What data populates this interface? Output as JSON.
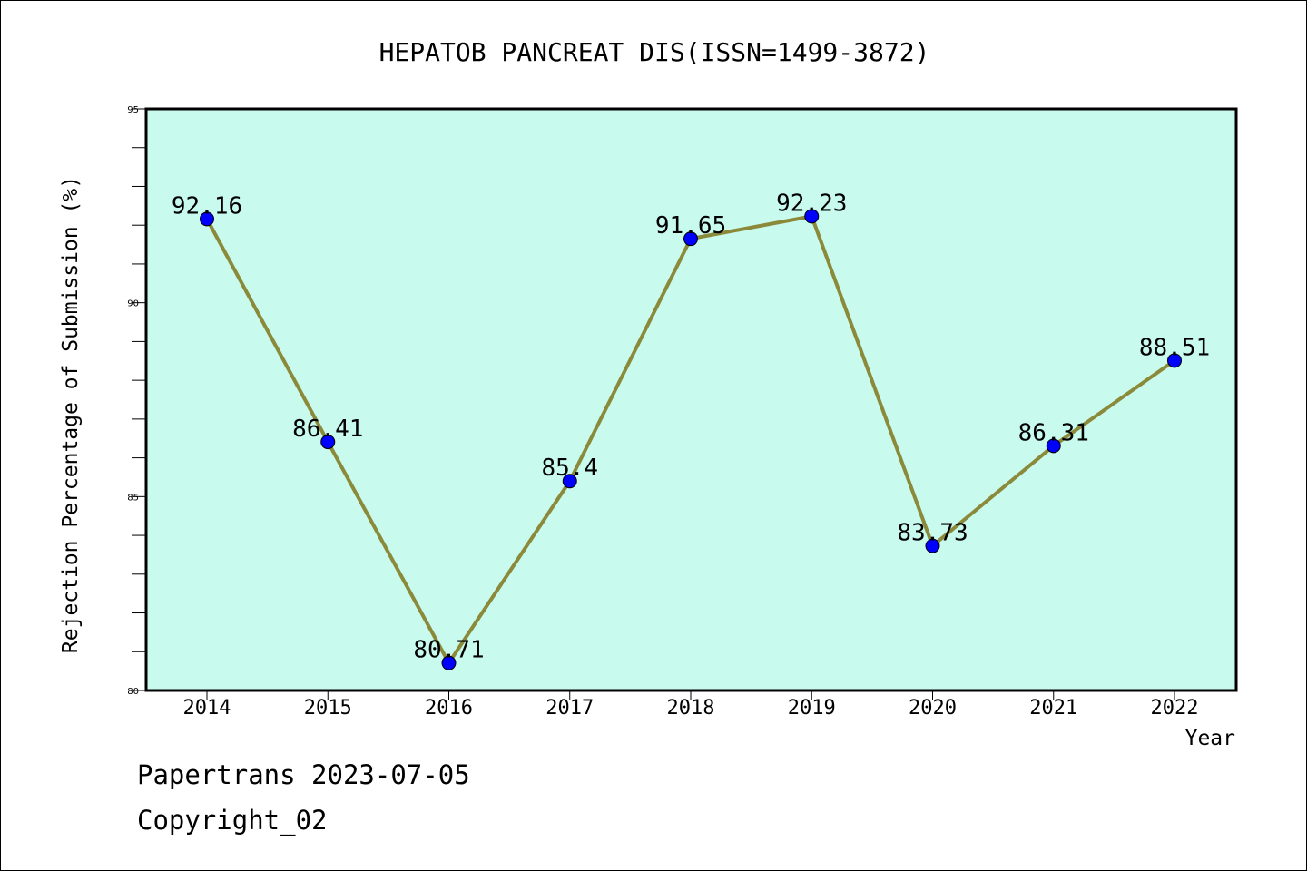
{
  "chart_data": {
    "type": "line",
    "title": "HEPATOB PANCREAT DIS(ISSN=1499-3872)",
    "xlabel": "Year",
    "ylabel": "Rejection Percentage of Submission (%)",
    "categories": [
      "2014",
      "2015",
      "2016",
      "2017",
      "2018",
      "2019",
      "2020",
      "2021",
      "2022"
    ],
    "values": [
      92.16,
      86.41,
      80.71,
      85.4,
      91.65,
      92.23,
      83.73,
      86.31,
      88.51
    ],
    "data_labels": [
      "92.16",
      "86.41",
      "80.71",
      "85.4",
      "91.65",
      "92.23",
      "83.73",
      "86.31",
      "88.51"
    ],
    "ylim": [
      80,
      95
    ],
    "yticks": [
      80,
      85,
      90,
      95
    ],
    "grid": false,
    "colors": {
      "plot_background": "#c8faee",
      "line": "#8b8a3a",
      "marker": "#0000ff"
    }
  },
  "footer": {
    "line1": "Papertrans 2023-07-05",
    "line2": "Copyright_02"
  }
}
